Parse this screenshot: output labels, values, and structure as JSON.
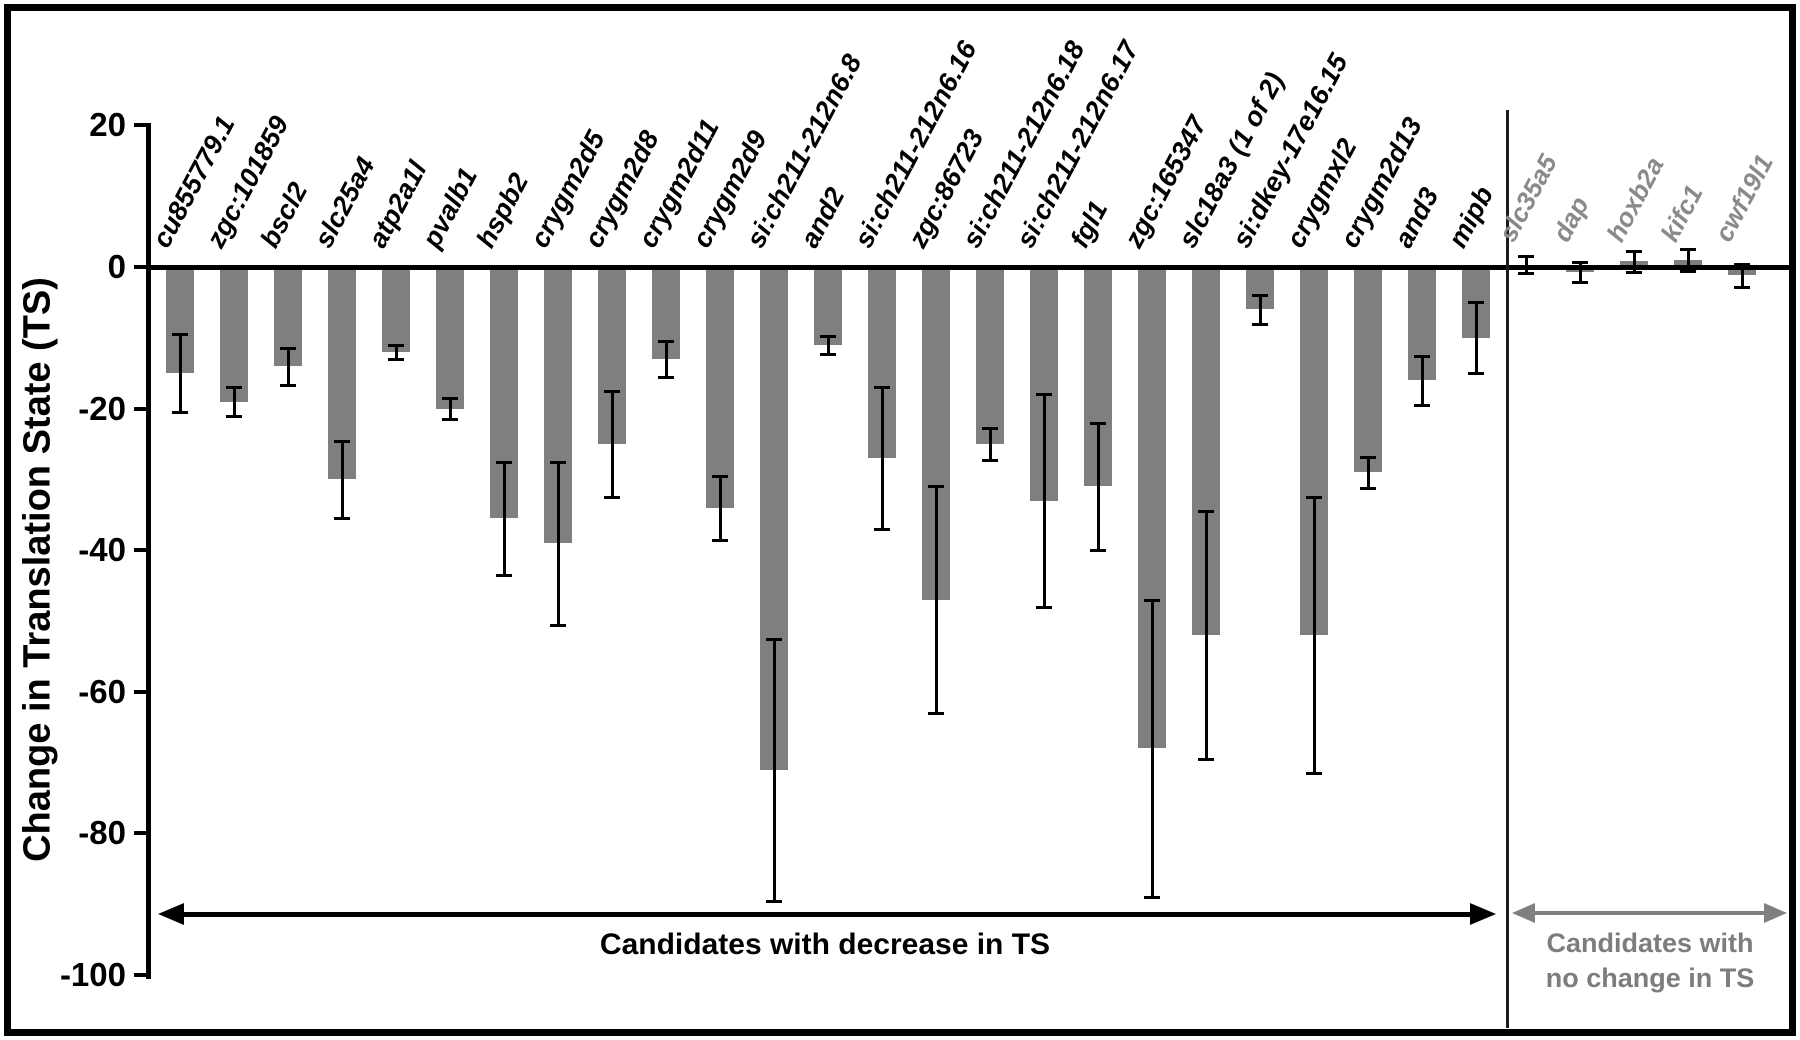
{
  "y_axis": {
    "title": "Change in Translation State (TS)",
    "ticks": [
      20,
      0,
      -20,
      -40,
      -60,
      -80,
      -100
    ]
  },
  "chart_data": {
    "type": "bar",
    "title": "",
    "ylabel": "Change in Translation State (TS)",
    "xlabel": "",
    "ylim": [
      -100,
      20
    ],
    "grid": false,
    "bar_color": "#7f7f7f",
    "error_bar_color": "#000000",
    "groups": [
      {
        "id": "decrease",
        "caption": "Candidates with decrease in TS",
        "label_color": "#000000",
        "arrow_color": "#000000",
        "text_color": "#000000",
        "categories": [
          "cu855779.1",
          "zgc:101859",
          "bscl2",
          "slc25a4",
          "atp2a1l",
          "pvalb1",
          "hspb2",
          "crygm2d5",
          "crygm2d8",
          "crygm2d11",
          "crygm2d9",
          "si:ch211-212n6.8",
          "and2",
          "si:ch211-212n6.16",
          "zgc:86723",
          "si:ch211-212n6.18",
          "si:ch211-212n6.17",
          "fgl1",
          "zgc:165347",
          "slc18a3 (1 of 2)",
          "si:dkey-17e16.15",
          "crygmxl2",
          "crygm2d13",
          "and3",
          "mipb"
        ],
        "values": [
          -15,
          -19,
          -14,
          -30,
          -12,
          -20,
          -35.5,
          -39,
          -25,
          -13,
          -34,
          -71,
          -11,
          -27,
          -47,
          -25,
          -33,
          -31,
          -68,
          -52,
          -6,
          -52,
          -29,
          -16,
          -10
        ],
        "errors": [
          5.5,
          2,
          2.6,
          5.4,
          1,
          1.5,
          8,
          11.5,
          7.5,
          2.5,
          4.5,
          18.5,
          1.3,
          10,
          16,
          2.2,
          15,
          9,
          21,
          17.5,
          2,
          19.5,
          2.2,
          3.5,
          5
        ]
      },
      {
        "id": "no-change",
        "caption_lines": [
          "Candidates with",
          "no change in TS"
        ],
        "label_color": "#8a8a8a",
        "arrow_color": "#808080",
        "text_color": "#7d7d7d",
        "categories": [
          "slc35a5",
          "dap",
          "hoxb2a",
          "kifc1",
          "cwf19l1"
        ],
        "values": [
          0.3,
          -0.7,
          0.8,
          1.0,
          -1.2
        ],
        "errors": [
          1.2,
          1.4,
          1.5,
          1.5,
          1.6
        ]
      }
    ]
  }
}
